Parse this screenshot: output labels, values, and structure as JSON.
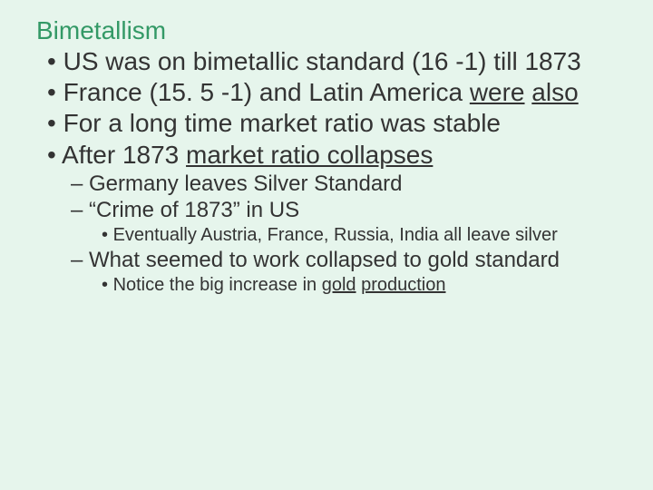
{
  "background_color": "#e6f5ec",
  "title_color": "#339966",
  "text_color": "#333333",
  "title": {
    "text": "Bimetallism",
    "fontsize": 28
  },
  "bullets": [
    {
      "level": 1,
      "text": "US was on bimetallic standard (16 -1) till 1873",
      "fontsize": 28
    },
    {
      "level": 1,
      "html": "France (15. 5 -1) and Latin America <span class=\"u\">were</span> <span class=\"u\">also</span>",
      "fontsize": 28
    },
    {
      "level": 1,
      "text": "For a long time market ratio was stable",
      "fontsize": 28
    },
    {
      "level": 1,
      "html": "After 1873 <span class=\"u\">market ratio collapses</span>",
      "fontsize": 28
    },
    {
      "level": 2,
      "text": "Germany leaves Silver Standard",
      "fontsize": 24
    },
    {
      "level": 2,
      "text": "“Crime of 1873” in US",
      "fontsize": 24
    },
    {
      "level": 3,
      "text": "Eventually Austria, France, Russia, India all leave silver",
      "fontsize": 20
    },
    {
      "level": 2,
      "text": "What seemed to work collapsed to gold standard",
      "fontsize": 24
    },
    {
      "level": 3,
      "html": "Notice the big increase in <span class=\"u\">gold</span> <span class=\"u\">production</span>",
      "fontsize": 20
    }
  ]
}
